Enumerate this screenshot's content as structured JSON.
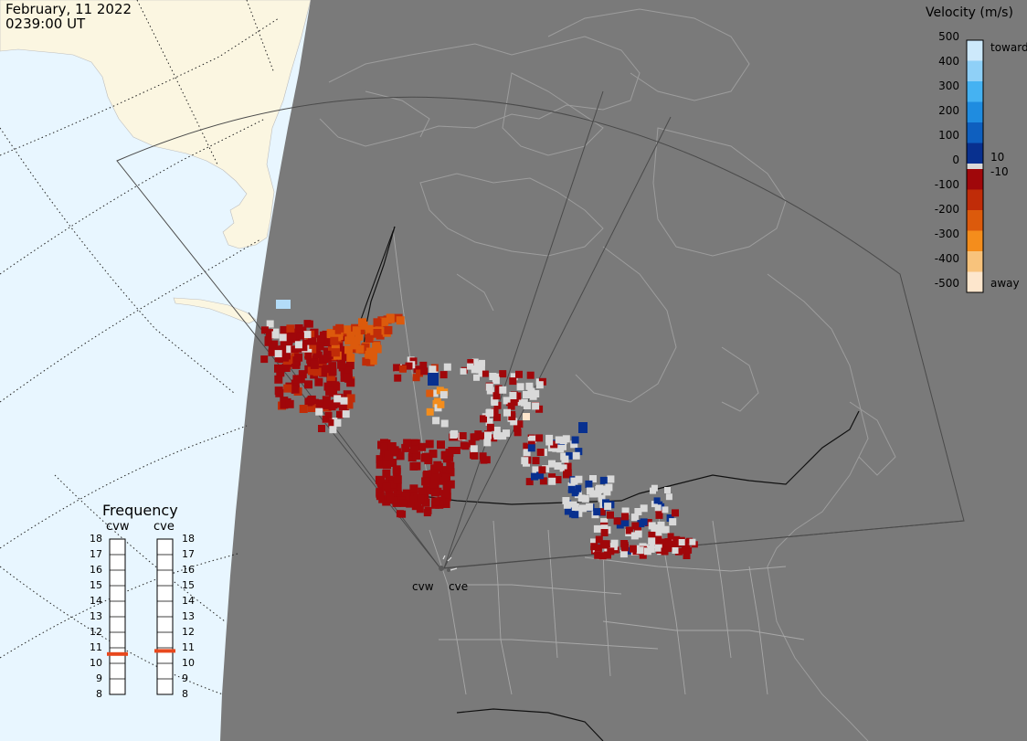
{
  "title": {
    "date": "February, 11 2022",
    "time": "0239:00 UT"
  },
  "colorbar": {
    "title": "Velocity (m/s)",
    "ticks": [
      "500",
      "400",
      "300",
      "200",
      "100",
      "0",
      "-100",
      "-200",
      "-300",
      "-400",
      "-500"
    ],
    "inner_pos": "10",
    "inner_neg": "-10",
    "toward_label": "toward",
    "away_label": "away",
    "colors": [
      "#cde9fb",
      "#8fd0f7",
      "#45b2f2",
      "#1f8ce0",
      "#0e5fbf",
      "#08308f",
      "#a0070a",
      "#c02c08",
      "#dc5a0c",
      "#f48d1c",
      "#f8c37c",
      "#fde6cc"
    ],
    "ground_scatter_color": "#d9d9d9"
  },
  "frequency": {
    "title": "Frequency",
    "radars": [
      {
        "name": "cvw",
        "value_mhz": 10.6
      },
      {
        "name": "cve",
        "value_mhz": 10.8
      }
    ],
    "ticks": [
      "18",
      "17",
      "16",
      "15",
      "14",
      "13",
      "12",
      "11",
      "10",
      "9",
      "8"
    ],
    "indicator_color": "#e8481d"
  },
  "radars": [
    {
      "name": "cvw"
    },
    {
      "name": "cve"
    }
  ],
  "map_colors": {
    "ocean": "#e8f6ff",
    "land_daylight": "#fbf6e1",
    "night": "#7a7a7a",
    "coast_night": "#9d9d9d"
  }
}
